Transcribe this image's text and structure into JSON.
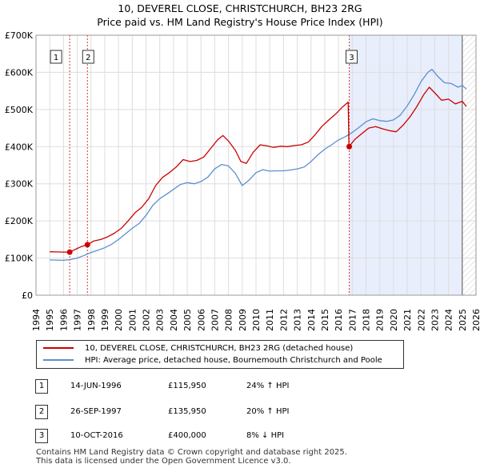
{
  "chart_data": {
    "type": "line",
    "title": "10, DEVEREL CLOSE, CHRISTCHURCH, BH23 2RG",
    "subtitle": "Price paid vs. HM Land Registry's House Price Index (HPI)",
    "xlim": [
      1994,
      2026
    ],
    "ylim": [
      0,
      700000
    ],
    "x_ticks": [
      "1994",
      "1995",
      "1996",
      "1997",
      "1998",
      "1999",
      "2000",
      "2001",
      "2002",
      "2003",
      "2004",
      "2005",
      "2006",
      "2007",
      "2008",
      "2009",
      "2010",
      "2011",
      "2012",
      "2013",
      "2014",
      "2015",
      "2016",
      "2017",
      "2018",
      "2019",
      "2020",
      "2021",
      "2022",
      "2023",
      "2024",
      "2025",
      "2026"
    ],
    "y_ticks": [
      {
        "value": 0,
        "label": "£0"
      },
      {
        "value": 100000,
        "label": "£100K"
      },
      {
        "value": 200000,
        "label": "£200K"
      },
      {
        "value": 300000,
        "label": "£300K"
      },
      {
        "value": 400000,
        "label": "£400K"
      },
      {
        "value": 500000,
        "label": "£500K"
      },
      {
        "value": 600000,
        "label": "£600K"
      },
      {
        "value": 700000,
        "label": "£700K"
      }
    ],
    "grid": true,
    "series": [
      {
        "name": "10, DEVEREL CLOSE, CHRISTCHURCH, BH23 2RG (detached house)",
        "color": "#cc0000",
        "points": [
          [
            1995.0,
            117000
          ],
          [
            1995.5,
            116500
          ],
          [
            1996.0,
            116000
          ],
          [
            1996.45,
            115950
          ],
          [
            1996.9,
            124000
          ],
          [
            1997.3,
            131000
          ],
          [
            1997.74,
            135950
          ],
          [
            1998.2,
            146000
          ],
          [
            1998.7,
            150000
          ],
          [
            1999.2,
            157000
          ],
          [
            1999.7,
            167000
          ],
          [
            2000.2,
            180000
          ],
          [
            2000.7,
            200000
          ],
          [
            2001.2,
            222000
          ],
          [
            2001.7,
            237000
          ],
          [
            2002.2,
            260000
          ],
          [
            2002.7,
            295000
          ],
          [
            2003.2,
            317000
          ],
          [
            2003.7,
            330000
          ],
          [
            2004.2,
            345000
          ],
          [
            2004.7,
            365000
          ],
          [
            2005.2,
            360000
          ],
          [
            2005.7,
            363000
          ],
          [
            2006.2,
            372000
          ],
          [
            2006.7,
            395000
          ],
          [
            2007.2,
            418000
          ],
          [
            2007.6,
            430000
          ],
          [
            2008.0,
            415000
          ],
          [
            2008.5,
            390000
          ],
          [
            2008.9,
            360000
          ],
          [
            2009.3,
            355000
          ],
          [
            2009.8,
            385000
          ],
          [
            2010.3,
            405000
          ],
          [
            2010.8,
            402000
          ],
          [
            2011.3,
            398000
          ],
          [
            2011.8,
            401000
          ],
          [
            2012.3,
            400000
          ],
          [
            2012.8,
            403000
          ],
          [
            2013.3,
            405000
          ],
          [
            2013.8,
            412000
          ],
          [
            2014.3,
            432000
          ],
          [
            2014.8,
            455000
          ],
          [
            2015.3,
            472000
          ],
          [
            2015.8,
            488000
          ],
          [
            2016.3,
            507000
          ],
          [
            2016.7,
            520000
          ],
          [
            2016.76,
            400000
          ],
          [
            2017.2,
            420000
          ],
          [
            2017.7,
            435000
          ],
          [
            2018.2,
            450000
          ],
          [
            2018.7,
            454000
          ],
          [
            2019.2,
            448000
          ],
          [
            2019.7,
            443000
          ],
          [
            2020.2,
            440000
          ],
          [
            2020.7,
            458000
          ],
          [
            2021.2,
            480000
          ],
          [
            2021.7,
            508000
          ],
          [
            2022.2,
            540000
          ],
          [
            2022.6,
            560000
          ],
          [
            2023.0,
            545000
          ],
          [
            2023.5,
            525000
          ],
          [
            2024.0,
            528000
          ],
          [
            2024.5,
            515000
          ],
          [
            2025.0,
            522000
          ],
          [
            2025.3,
            508000
          ]
        ]
      },
      {
        "name": "HPI: Average price, detached house, Bournemouth Christchurch and Poole",
        "color": "#5b8fd0",
        "points": [
          [
            1995.0,
            95000
          ],
          [
            1995.5,
            94500
          ],
          [
            1996.0,
            94000
          ],
          [
            1996.5,
            96000
          ],
          [
            1997.0,
            100000
          ],
          [
            1997.5,
            107000
          ],
          [
            1998.0,
            115000
          ],
          [
            1998.5,
            121000
          ],
          [
            1999.0,
            128000
          ],
          [
            1999.5,
            137000
          ],
          [
            2000.0,
            150000
          ],
          [
            2000.5,
            165000
          ],
          [
            2001.0,
            180000
          ],
          [
            2001.5,
            193000
          ],
          [
            2002.0,
            215000
          ],
          [
            2002.5,
            242000
          ],
          [
            2003.0,
            260000
          ],
          [
            2003.5,
            272000
          ],
          [
            2004.0,
            285000
          ],
          [
            2004.5,
            298000
          ],
          [
            2005.0,
            303000
          ],
          [
            2005.5,
            300000
          ],
          [
            2006.0,
            306000
          ],
          [
            2006.5,
            318000
          ],
          [
            2007.0,
            340000
          ],
          [
            2007.5,
            352000
          ],
          [
            2008.0,
            348000
          ],
          [
            2008.5,
            328000
          ],
          [
            2009.0,
            295000
          ],
          [
            2009.5,
            310000
          ],
          [
            2010.0,
            330000
          ],
          [
            2010.5,
            338000
          ],
          [
            2011.0,
            334000
          ],
          [
            2011.5,
            335000
          ],
          [
            2012.0,
            335000
          ],
          [
            2012.5,
            337000
          ],
          [
            2013.0,
            340000
          ],
          [
            2013.5,
            345000
          ],
          [
            2014.0,
            360000
          ],
          [
            2014.5,
            378000
          ],
          [
            2015.0,
            393000
          ],
          [
            2015.5,
            405000
          ],
          [
            2016.0,
            418000
          ],
          [
            2016.5,
            427000
          ],
          [
            2017.0,
            438000
          ],
          [
            2017.5,
            452000
          ],
          [
            2018.0,
            467000
          ],
          [
            2018.5,
            475000
          ],
          [
            2019.0,
            470000
          ],
          [
            2019.5,
            468000
          ],
          [
            2020.0,
            472000
          ],
          [
            2020.5,
            485000
          ],
          [
            2021.0,
            510000
          ],
          [
            2021.5,
            540000
          ],
          [
            2022.0,
            575000
          ],
          [
            2022.5,
            600000
          ],
          [
            2022.8,
            608000
          ],
          [
            2023.2,
            590000
          ],
          [
            2023.7,
            572000
          ],
          [
            2024.2,
            570000
          ],
          [
            2024.7,
            560000
          ],
          [
            2025.0,
            565000
          ],
          [
            2025.3,
            555000
          ]
        ]
      }
    ],
    "sales": [
      {
        "marker": "1",
        "x": 1996.45,
        "price": 115950,
        "date": "14-JUN-1996",
        "price_label": "£115,950",
        "hpi_label": "24% ↑ HPI"
      },
      {
        "marker": "2",
        "x": 1997.74,
        "price": 135950,
        "date": "26-SEP-1997",
        "price_label": "£135,950",
        "hpi_label": "20% ↑ HPI"
      },
      {
        "marker": "3",
        "x": 2016.78,
        "price": 400000,
        "date": "10-OCT-2016",
        "price_label": "£400,000",
        "hpi_label": "8% ↓ HPI"
      }
    ],
    "shaded_span": [
      2016.78,
      2025.0
    ],
    "forecast_start": 2025.0
  },
  "legend": {
    "property_label": "10, DEVEREL CLOSE, CHRISTCHURCH, BH23 2RG (detached house)",
    "hpi_label": "HPI: Average price, detached house, Bournemouth Christchurch and Poole"
  },
  "footer": {
    "line1": "Contains HM Land Registry data © Crown copyright and database right 2025.",
    "line2": "This data is licensed under the Open Government Licence v3.0."
  },
  "colors": {
    "property": "#cc0000",
    "hpi": "#5b8fd0",
    "shade": "#e8eefc",
    "vline": "#dd3333"
  }
}
